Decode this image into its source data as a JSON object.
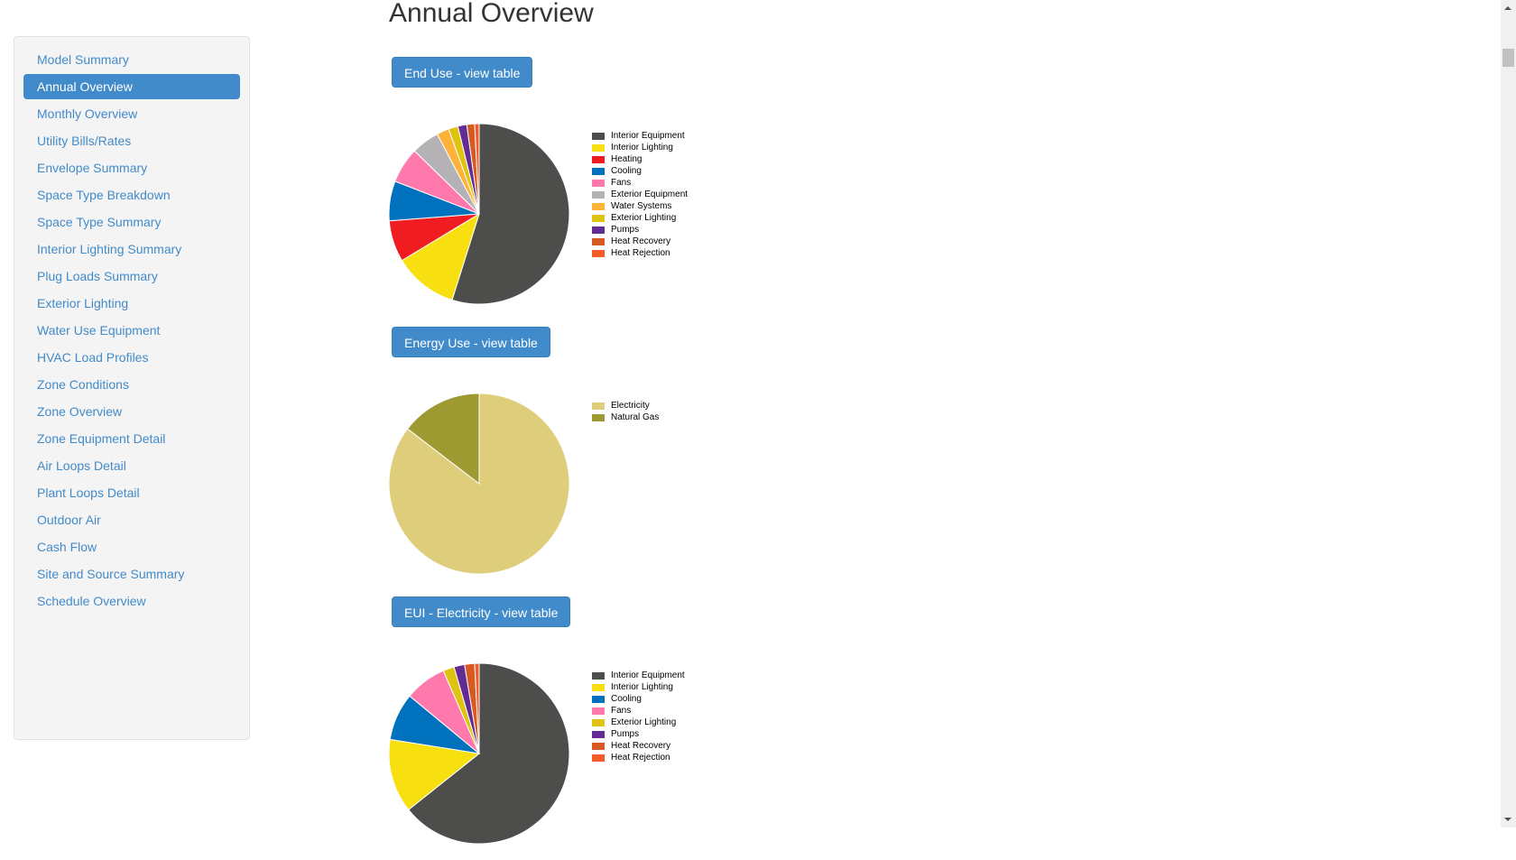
{
  "sidebar": {
    "items": [
      {
        "label": "Model Summary",
        "active": false
      },
      {
        "label": "Annual Overview",
        "active": true
      },
      {
        "label": "Monthly Overview",
        "active": false
      },
      {
        "label": "Utility Bills/Rates",
        "active": false
      },
      {
        "label": "Envelope Summary",
        "active": false
      },
      {
        "label": "Space Type Breakdown",
        "active": false
      },
      {
        "label": "Space Type Summary",
        "active": false
      },
      {
        "label": "Interior Lighting Summary",
        "active": false
      },
      {
        "label": "Plug Loads Summary",
        "active": false
      },
      {
        "label": "Exterior Lighting",
        "active": false
      },
      {
        "label": "Water Use Equipment",
        "active": false
      },
      {
        "label": "HVAC Load Profiles",
        "active": false
      },
      {
        "label": "Zone Conditions",
        "active": false
      },
      {
        "label": "Zone Overview",
        "active": false
      },
      {
        "label": "Zone Equipment Detail",
        "active": false
      },
      {
        "label": "Air Loops Detail",
        "active": false
      },
      {
        "label": "Plant Loops Detail",
        "active": false
      },
      {
        "label": "Outdoor Air",
        "active": false
      },
      {
        "label": "Cash Flow",
        "active": false
      },
      {
        "label": "Site and Source Summary",
        "active": false
      },
      {
        "label": "Schedule Overview",
        "active": false
      }
    ]
  },
  "main": {
    "title": "Annual Overview",
    "sections": [
      {
        "button_label": "End Use - view table"
      },
      {
        "button_label": "Energy Use - view table"
      },
      {
        "button_label": "EUI - Electricity - view table"
      }
    ]
  },
  "colors": {
    "accent": "#428bca",
    "Interior Equipment": "#4d4d4b",
    "Interior Lighting": "#f7df10",
    "Heating": "#ef1c21",
    "Cooling": "#0071bd",
    "Fans": "#ff79ad",
    "Exterior Equipment": "#b5b2b5",
    "Water Systems": "#ffb239",
    "Exterior Lighting": "#dec310",
    "Pumps": "#632c94",
    "Heat Recovery": "#d65a21",
    "Heat Rejection": "#f75a29",
    "Electricity": "#decd7b",
    "Natural Gas": "#9c9a31"
  },
  "chart_data": [
    {
      "type": "pie",
      "title": "End Use",
      "categories": [
        "Interior Equipment",
        "Interior Lighting",
        "Heating",
        "Cooling",
        "Fans",
        "Exterior Equipment",
        "Water Systems",
        "Exterior Lighting",
        "Pumps",
        "Heat Recovery",
        "Heat Rejection"
      ],
      "values": [
        54.8,
        11.5,
        7.4,
        7.1,
        6.4,
        5.0,
        2.2,
        1.7,
        1.6,
        1.4,
        0.8
      ],
      "unit": "percent (estimated)",
      "legend_position": "right"
    },
    {
      "type": "pie",
      "title": "Energy Use",
      "categories": [
        "Electricity",
        "Natural Gas"
      ],
      "values": [
        85.4,
        14.6
      ],
      "unit": "percent (estimated)",
      "legend_position": "right"
    },
    {
      "type": "pie",
      "title": "EUI - Electricity",
      "categories": [
        "Interior Equipment",
        "Interior Lighting",
        "Cooling",
        "Fans",
        "Exterior Lighting",
        "Pumps",
        "Heat Recovery",
        "Heat Rejection"
      ],
      "values": [
        64.3,
        13.2,
        8.5,
        7.5,
        2.0,
        1.9,
        1.8,
        0.8
      ],
      "unit": "percent (estimated)",
      "legend_position": "right"
    }
  ]
}
